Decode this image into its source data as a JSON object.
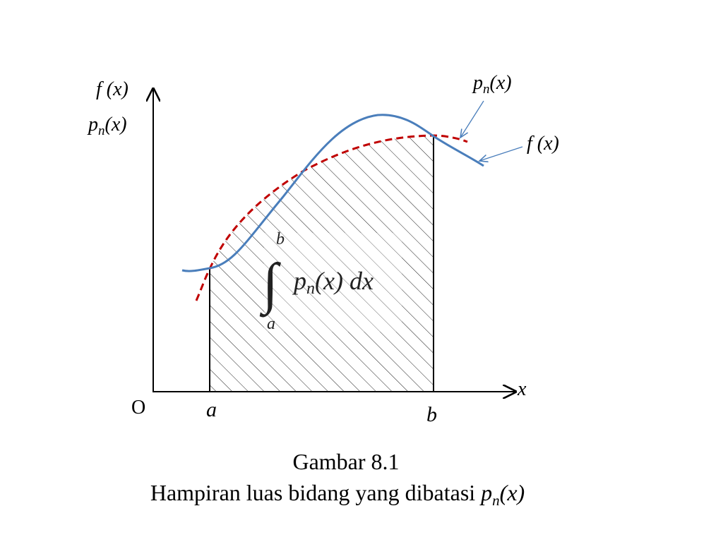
{
  "axes": {
    "y_label_f": "f (x)",
    "y_label_p": {
      "base": "p",
      "sub": "n",
      "arg": "(x)"
    },
    "x_label": "x",
    "origin": "O"
  },
  "bounds": {
    "lower": "a",
    "upper": "b"
  },
  "curve_labels": {
    "polynomial": {
      "base": "p",
      "sub": "n",
      "arg": "(x)"
    },
    "function": "f (x)"
  },
  "integral": {
    "sign": "∫",
    "upper": "b",
    "lower": "a",
    "integrand": {
      "base": "p",
      "sub": "n",
      "arg": "(x) dx"
    }
  },
  "caption": {
    "number": "Gambar 8.1",
    "text": "Hampiran luas bidang yang dibatasi ",
    "math": {
      "base": "p",
      "sub": "n",
      "arg": "(x)"
    }
  }
}
